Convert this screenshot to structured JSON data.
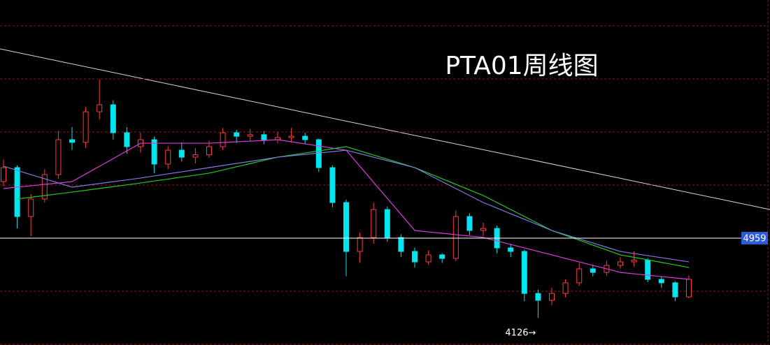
{
  "chart_data": {
    "type": "candlestick",
    "title": "PTA01周线图",
    "ylim": [
      3842,
      7448
    ],
    "up_color": "#ff3b3b",
    "down_color": "#00e5ee",
    "grid": true,
    "open": [
      5550,
      5696,
      5185,
      5368,
      5623,
      5988,
      5960,
      6280,
      6353,
      6061,
      5915,
      5988,
      5733,
      5878,
      5805,
      5830,
      5915,
      6061,
      6024,
      6040,
      5988,
      6010,
      6024,
      5988,
      5696,
      5331,
      4820,
      4966,
      5258,
      4966,
      4820,
      4711,
      4784,
      4747,
      5185,
      5039,
      5060,
      4857,
      4820,
      4381,
      4309,
      4381,
      4492,
      4638,
      4601,
      4674,
      4711,
      4730,
      4528,
      4492,
      4345
    ],
    "high": [
      5780,
      5720,
      5420,
      5680,
      6080,
      6120,
      6330,
      6620,
      6400,
      6120,
      6060,
      6020,
      5920,
      5960,
      5900,
      5980,
      6110,
      6090,
      6100,
      6080,
      6070,
      6110,
      6060,
      6000,
      5720,
      5360,
      5020,
      5330,
      5290,
      5000,
      4860,
      4830,
      4800,
      5250,
      5220,
      5120,
      5090,
      4900,
      4840,
      4420,
      4440,
      4530,
      4700,
      4680,
      4720,
      4760,
      4820,
      4750,
      4560,
      4510,
      4570
    ],
    "low": [
      5500,
      5060,
      4980,
      5330,
      5580,
      5880,
      5900,
      6200,
      5990,
      5840,
      5850,
      5640,
      5680,
      5760,
      5740,
      5800,
      5880,
      5950,
      5970,
      5940,
      5950,
      5960,
      5940,
      5650,
      5280,
      4560,
      4700,
      4900,
      4920,
      4760,
      4650,
      4680,
      4700,
      4720,
      4990,
      4980,
      4800,
      4760,
      4300,
      4126,
      4260,
      4340,
      4460,
      4560,
      4570,
      4640,
      4660,
      4500,
      4440,
      4300,
      4330
    ],
    "close": [
      5696,
      5185,
      5368,
      5623,
      5988,
      5960,
      6280,
      6353,
      6061,
      5915,
      5988,
      5733,
      5878,
      5805,
      5830,
      5915,
      6061,
      6024,
      6040,
      5988,
      6010,
      6024,
      5988,
      5696,
      5331,
      4820,
      4966,
      5258,
      4966,
      4820,
      4711,
      4784,
      4747,
      5185,
      5039,
      5060,
      4857,
      4820,
      4381,
      4309,
      4381,
      4492,
      4638,
      4601,
      4674,
      4711,
      4730,
      4528,
      4492,
      4345,
      4528
    ],
    "series": [
      {
        "color": "#e03ad8",
        "values": [
          5477,
          5492,
          5506,
          5521,
          5535,
          5550,
          5630,
          5710,
          5790,
          5871,
          5951,
          5951,
          5951,
          5951,
          5951,
          5951,
          5958,
          5966,
          5973,
          5980,
          5988,
          5966,
          5944,
          5922,
          5900,
          5878,
          5710,
          5542,
          5375,
          5207,
          5039,
          5024,
          5010,
          4995,
          4981,
          4966,
          4930,
          4893,
          4857,
          4820,
          4784,
          4747,
          4711,
          4674,
          4638,
          4601,
          4586,
          4572,
          4557,
          4543,
          4528
        ]
      },
      {
        "color": "#22c922",
        "values": [
          null,
          5368,
          5386,
          5404,
          5422,
          5440,
          5459,
          5478,
          5497,
          5516,
          5535,
          5556,
          5576,
          5597,
          5617,
          5638,
          5671,
          5705,
          5738,
          5772,
          5805,
          5827,
          5849,
          5871,
          5893,
          5915,
          5871,
          5827,
          5784,
          5740,
          5696,
          5638,
          5580,
          5521,
          5463,
          5404,
          5331,
          5258,
          5185,
          5112,
          5039,
          4988,
          4937,
          4886,
          4835,
          4784,
          4758,
          4732,
          4705,
          4679,
          4652
        ]
      },
      {
        "color": "#7b7be0",
        "values": [
          5711,
          5667,
          5623,
          5580,
          5536,
          5492,
          5511,
          5530,
          5549,
          5568,
          5587,
          5609,
          5631,
          5652,
          5674,
          5696,
          5718,
          5740,
          5761,
          5783,
          5805,
          5820,
          5834,
          5849,
          5863,
          5878,
          5842,
          5805,
          5769,
          5733,
          5696,
          5623,
          5550,
          5477,
          5404,
          5331,
          5273,
          5214,
          5156,
          5098,
          5039,
          4995,
          4951,
          4908,
          4864,
          4820,
          4798,
          4776,
          4755,
          4733,
          4711
        ]
      }
    ],
    "price_line": 4959,
    "low_annotation": {
      "index": 39,
      "text": "4126→"
    }
  }
}
